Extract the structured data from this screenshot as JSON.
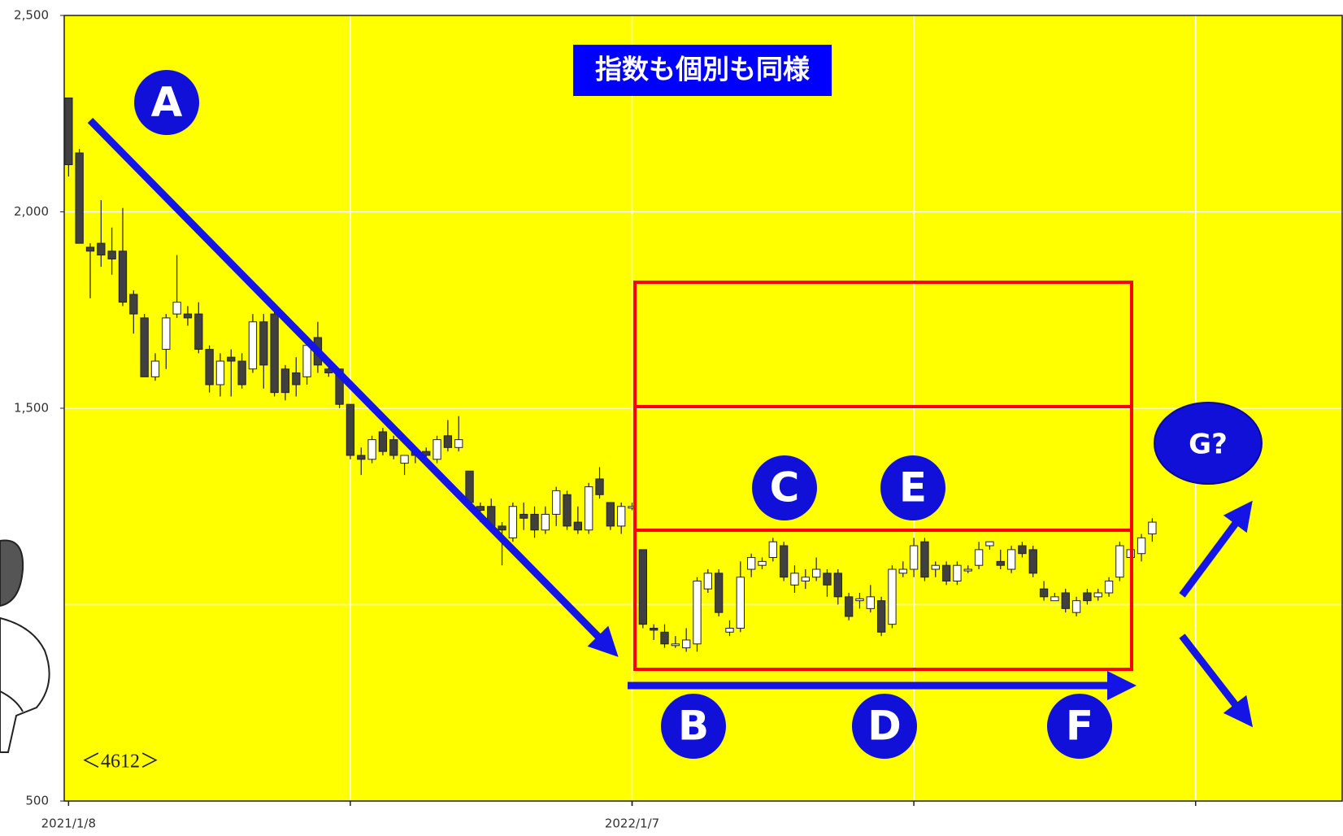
{
  "chart_data": {
    "type": "candlestick",
    "title": "指数も個別も同様",
    "x": [
      0,
      1,
      2,
      3,
      4,
      5,
      6,
      7,
      8,
      9,
      10,
      11,
      12,
      13,
      14,
      15,
      16,
      17,
      18,
      19,
      20,
      21,
      22,
      23,
      24,
      25,
      26,
      27,
      28,
      29,
      30,
      31,
      32,
      33,
      34,
      35,
      36,
      37,
      38,
      39,
      40,
      41,
      42,
      43,
      44,
      45,
      46,
      47,
      48,
      49,
      50,
      51,
      52,
      53,
      54,
      55,
      56,
      57,
      58,
      59,
      60,
      61,
      62,
      63,
      64,
      65,
      66,
      67,
      68,
      69,
      70,
      71,
      72,
      73,
      74,
      75,
      76,
      77,
      78,
      79,
      80,
      81,
      82,
      83,
      84,
      85,
      86,
      87,
      88,
      89,
      90,
      91,
      92,
      93,
      94,
      95,
      96,
      97,
      98,
      99,
      100
    ],
    "open": [
      2290,
      2150,
      1910,
      1920,
      1900,
      1900,
      1790,
      1730,
      1580,
      1650,
      1740,
      1740,
      1740,
      1650,
      1560,
      1630,
      1620,
      1600,
      1720,
      1740,
      1600,
      1590,
      1580,
      1680,
      1600,
      1600,
      1510,
      1380,
      1370,
      1440,
      1420,
      1360,
      1390,
      1390,
      1370,
      1430,
      1400,
      1340,
      1250,
      1250,
      1200,
      1170,
      1230,
      1230,
      1190,
      1230,
      1280,
      1210,
      1190,
      1320,
      1260,
      1200,
      1250,
      1140,
      940,
      930,
      900,
      890,
      900,
      1040,
      1080,
      930,
      940,
      1090,
      1100,
      1120,
      1150,
      1050,
      1060,
      1070,
      1080,
      1080,
      1020,
      1010,
      990,
      1010,
      950,
      1080,
      1090,
      1160,
      1090,
      1100,
      1060,
      1090,
      1100,
      1150,
      1110,
      1090,
      1150,
      1140,
      1040,
      1010,
      1030,
      980,
      1030,
      1020,
      1030,
      1070,
      1120,
      1130,
      1180
    ],
    "high": [
      2290,
      2160,
      1920,
      2030,
      1960,
      2010,
      1800,
      1740,
      1640,
      1740,
      1890,
      1760,
      1770,
      1660,
      1640,
      1650,
      1640,
      1740,
      1740,
      1750,
      1610,
      1630,
      1680,
      1720,
      1620,
      1600,
      1510,
      1400,
      1430,
      1450,
      1430,
      1380,
      1400,
      1400,
      1430,
      1470,
      1480,
      1340,
      1260,
      1270,
      1210,
      1260,
      1260,
      1250,
      1250,
      1300,
      1290,
      1250,
      1310,
      1350,
      1260,
      1260,
      1260,
      1140,
      950,
      950,
      920,
      940,
      1070,
      1090,
      1090,
      960,
      1110,
      1130,
      1120,
      1170,
      1160,
      1100,
      1090,
      1120,
      1090,
      1090,
      1030,
      1030,
      1050,
      1020,
      1100,
      1110,
      1170,
      1170,
      1110,
      1110,
      1110,
      1100,
      1160,
      1160,
      1140,
      1150,
      1160,
      1150,
      1060,
      1030,
      1040,
      1020,
      1040,
      1040,
      1070,
      1160,
      1160,
      1180,
      1220
    ],
    "low": [
      2090,
      1920,
      1780,
      1860,
      1840,
      1760,
      1690,
      1580,
      1570,
      1600,
      1730,
      1710,
      1640,
      1540,
      1530,
      1530,
      1550,
      1590,
      1550,
      1530,
      1520,
      1530,
      1560,
      1590,
      1580,
      1500,
      1370,
      1330,
      1360,
      1380,
      1370,
      1330,
      1360,
      1370,
      1360,
      1390,
      1390,
      1250,
      1210,
      1190,
      1100,
      1160,
      1190,
      1170,
      1180,
      1200,
      1190,
      1180,
      1180,
      1270,
      1190,
      1180,
      1240,
      940,
      910,
      890,
      890,
      880,
      880,
      1030,
      970,
      920,
      930,
      1070,
      1090,
      1110,
      1060,
      1030,
      1040,
      1060,
      1020,
      1000,
      960,
      990,
      980,
      920,
      940,
      1070,
      1070,
      1060,
      1070,
      1050,
      1050,
      1080,
      1090,
      1140,
      1090,
      1080,
      1120,
      1070,
      1010,
      1010,
      980,
      970,
      1000,
      1010,
      1020,
      1060,
      1090,
      1110,
      1160
    ],
    "close": [
      2120,
      1920,
      1900,
      1890,
      1880,
      1770,
      1740,
      1580,
      1620,
      1730,
      1770,
      1730,
      1650,
      1560,
      1620,
      1620,
      1560,
      1720,
      1610,
      1540,
      1540,
      1560,
      1660,
      1610,
      1590,
      1510,
      1380,
      1370,
      1420,
      1390,
      1380,
      1380,
      1380,
      1380,
      1420,
      1400,
      1420,
      1260,
      1240,
      1200,
      1190,
      1250,
      1220,
      1190,
      1230,
      1290,
      1200,
      1190,
      1300,
      1280,
      1200,
      1250,
      1250,
      950,
      935,
      900,
      900,
      910,
      1060,
      1080,
      980,
      940,
      1070,
      1120,
      1110,
      1160,
      1070,
      1080,
      1070,
      1090,
      1050,
      1020,
      970,
      1015,
      1020,
      930,
      1090,
      1090,
      1150,
      1070,
      1100,
      1060,
      1100,
      1090,
      1140,
      1160,
      1100,
      1140,
      1130,
      1080,
      1020,
      1020,
      990,
      1010,
      1010,
      1030,
      1060,
      1150,
      1140,
      1170,
      1210
    ],
    "up_color": "#ffffff",
    "down_color": "#404040",
    "background": "#ffff00",
    "xlim": [
      -0.4,
      117.6
    ],
    "xticks": [
      {
        "value": 0,
        "label": "2021/1/8"
      },
      {
        "value": 52,
        "label": "2022/1/7"
      }
    ],
    "xgrid": [
      26,
      52,
      78,
      104
    ],
    "ylim": [
      500,
      2500
    ],
    "yticks": [
      500,
      {
        "value": 1500,
        "label": "1,500"
      },
      {
        "value": 2000,
        "label": "2,000"
      },
      {
        "value": 2500,
        "label": "2,500"
      }
    ],
    "ygrid": [
      1000,
      1500,
      2000
    ],
    "grid": true,
    "annotations": [
      "A",
      "B",
      "C",
      "D",
      "E",
      "F",
      "G?"
    ],
    "code": "＜4612＞"
  }
}
